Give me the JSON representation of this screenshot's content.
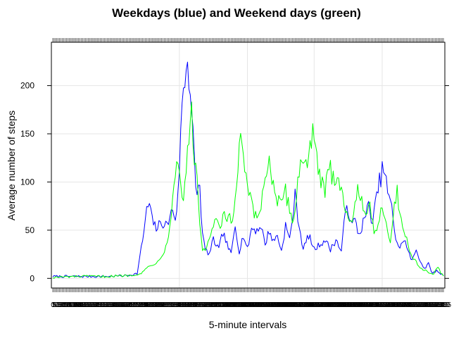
{
  "chart_data": {
    "type": "line",
    "title": "Weekdays (blue) and Weekend days (green)",
    "xlabel": "5-minute intervals",
    "ylabel": "Average number of steps",
    "x_count": 288,
    "xlim": [
      0,
      287
    ],
    "ylim": [
      -10,
      245
    ],
    "yticks": [
      0,
      50,
      100,
      150,
      200
    ],
    "grid": true,
    "series": [
      {
        "color": "#0000FF",
        "knots": [
          [
            0,
            2
          ],
          [
            20,
            2
          ],
          [
            40,
            2
          ],
          [
            55,
            3
          ],
          [
            62,
            5
          ],
          [
            66,
            40
          ],
          [
            69,
            70
          ],
          [
            71,
            78
          ],
          [
            73,
            60
          ],
          [
            76,
            52
          ],
          [
            80,
            58
          ],
          [
            84,
            55
          ],
          [
            88,
            72
          ],
          [
            90,
            62
          ],
          [
            92,
            85
          ],
          [
            94,
            150
          ],
          [
            96,
            200
          ],
          [
            98,
            215
          ],
          [
            99,
            232
          ],
          [
            101,
            195
          ],
          [
            103,
            150
          ],
          [
            105,
            90
          ],
          [
            108,
            95
          ],
          [
            110,
            45
          ],
          [
            112,
            30
          ],
          [
            115,
            25
          ],
          [
            118,
            40
          ],
          [
            122,
            30
          ],
          [
            125,
            48
          ],
          [
            128,
            35
          ],
          [
            131,
            25
          ],
          [
            134,
            55
          ],
          [
            137,
            28
          ],
          [
            140,
            45
          ],
          [
            143,
            30
          ],
          [
            146,
            52
          ],
          [
            150,
            50
          ],
          [
            153,
            55
          ],
          [
            156,
            35
          ],
          [
            159,
            50
          ],
          [
            162,
            38
          ],
          [
            165,
            45
          ],
          [
            168,
            28
          ],
          [
            171,
            55
          ],
          [
            174,
            40
          ],
          [
            178,
            85
          ],
          [
            181,
            55
          ],
          [
            184,
            30
          ],
          [
            188,
            45
          ],
          [
            192,
            30
          ],
          [
            196,
            35
          ],
          [
            200,
            40
          ],
          [
            204,
            30
          ],
          [
            208,
            40
          ],
          [
            212,
            28
          ],
          [
            216,
            82
          ],
          [
            219,
            55
          ],
          [
            222,
            60
          ],
          [
            225,
            45
          ],
          [
            229,
            62
          ],
          [
            232,
            75
          ],
          [
            235,
            58
          ],
          [
            238,
            85
          ],
          [
            240,
            100
          ],
          [
            243,
            116
          ],
          [
            246,
            90
          ],
          [
            249,
            72
          ],
          [
            252,
            42
          ],
          [
            255,
            30
          ],
          [
            258,
            42
          ],
          [
            261,
            28
          ],
          [
            264,
            18
          ],
          [
            267,
            30
          ],
          [
            270,
            18
          ],
          [
            273,
            10
          ],
          [
            276,
            15
          ],
          [
            279,
            5
          ],
          [
            282,
            8
          ],
          [
            285,
            5
          ],
          [
            287,
            3
          ]
        ]
      },
      {
        "color": "#00FF00",
        "knots": [
          [
            0,
            1
          ],
          [
            20,
            2
          ],
          [
            40,
            2
          ],
          [
            55,
            3
          ],
          [
            65,
            5
          ],
          [
            70,
            12
          ],
          [
            74,
            15
          ],
          [
            78,
            18
          ],
          [
            82,
            30
          ],
          [
            85,
            45
          ],
          [
            88,
            80
          ],
          [
            90,
            110
          ],
          [
            92,
            125
          ],
          [
            94,
            95
          ],
          [
            96,
            80
          ],
          [
            98,
            120
          ],
          [
            100,
            150
          ],
          [
            102,
            168
          ],
          [
            104,
            120
          ],
          [
            106,
            100
          ],
          [
            108,
            60
          ],
          [
            110,
            30
          ],
          [
            113,
            30
          ],
          [
            116,
            45
          ],
          [
            119,
            60
          ],
          [
            123,
            50
          ],
          [
            126,
            70
          ],
          [
            128,
            55
          ],
          [
            130,
            65
          ],
          [
            132,
            55
          ],
          [
            135,
            100
          ],
          [
            138,
            145
          ],
          [
            141,
            110
          ],
          [
            144,
            90
          ],
          [
            147,
            70
          ],
          [
            150,
            60
          ],
          [
            153,
            75
          ],
          [
            156,
            110
          ],
          [
            159,
            120
          ],
          [
            162,
            100
          ],
          [
            165,
            80
          ],
          [
            168,
            75
          ],
          [
            171,
            90
          ],
          [
            174,
            70
          ],
          [
            177,
            60
          ],
          [
            180,
            100
          ],
          [
            183,
            125
          ],
          [
            186,
            120
          ],
          [
            189,
            140
          ],
          [
            191,
            147
          ],
          [
            194,
            120
          ],
          [
            197,
            100
          ],
          [
            200,
            90
          ],
          [
            203,
            115
          ],
          [
            206,
            105
          ],
          [
            209,
            110
          ],
          [
            212,
            95
          ],
          [
            215,
            70
          ],
          [
            218,
            55
          ],
          [
            221,
            70
          ],
          [
            224,
            95
          ],
          [
            227,
            85
          ],
          [
            230,
            60
          ],
          [
            233,
            75
          ],
          [
            236,
            50
          ],
          [
            239,
            55
          ],
          [
            242,
            80
          ],
          [
            245,
            55
          ],
          [
            248,
            40
          ],
          [
            251,
            75
          ],
          [
            253,
            90
          ],
          [
            256,
            60
          ],
          [
            259,
            45
          ],
          [
            262,
            30
          ],
          [
            265,
            20
          ],
          [
            268,
            15
          ],
          [
            271,
            10
          ],
          [
            274,
            8
          ],
          [
            277,
            5
          ],
          [
            280,
            5
          ],
          [
            283,
            12
          ],
          [
            285,
            5
          ],
          [
            287,
            2
          ]
        ]
      }
    ]
  }
}
